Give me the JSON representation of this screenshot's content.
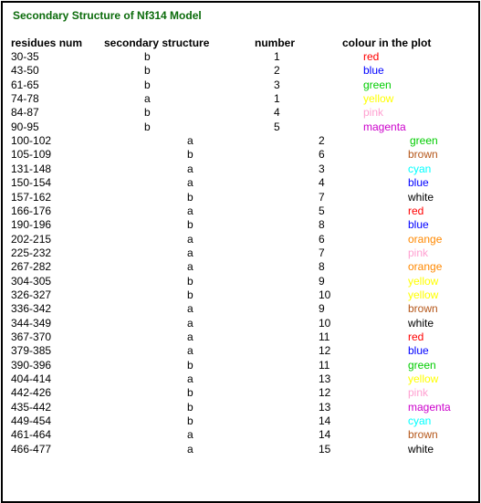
{
  "title": "Secondary Structure of Nf314 Model",
  "headers": {
    "residues": "residues num",
    "structure": "secondary structure",
    "number": "number",
    "colour": "colour in the plot"
  },
  "colors": {
    "title": "#0b6b0b",
    "red": "#ff0000",
    "blue": "#0000ff",
    "green": "#00cc00",
    "yellow": "#ffff00",
    "pink": "#ff9fd0",
    "magenta": "#cc00cc",
    "brown": "#b5571a",
    "cyan": "#00ffff",
    "white": "#000000",
    "orange": "#ff8800"
  },
  "rows": [
    {
      "res": "30-35",
      "ss": "b",
      "num": "1",
      "colour": "red"
    },
    {
      "res": "43-50",
      "ss": "b",
      "num": "2",
      "colour": "blue"
    },
    {
      "res": "61-65",
      "ss": "b",
      "num": "3",
      "colour": "green"
    },
    {
      "res": "74-78",
      "ss": "a",
      "num": "1",
      "colour": "yellow"
    },
    {
      "res": "84-87",
      "ss": "b",
      "num": "4",
      "colour": "pink"
    },
    {
      "res": "90-95",
      "ss": "b",
      "num": "5",
      "colour": "magenta"
    },
    {
      "res": "100-102",
      "ss": "a",
      "num": "2",
      "colour": "green"
    },
    {
      "res": "105-109",
      "ss": "b",
      "num": "6",
      "colour": "brown"
    },
    {
      "res": "131-148",
      "ss": "a",
      "num": "3",
      "colour": "cyan"
    },
    {
      "res": "150-154",
      "ss": "a",
      "num": "4",
      "colour": "blue"
    },
    {
      "res": "157-162",
      "ss": "b",
      "num": "7",
      "colour": "white"
    },
    {
      "res": "166-176",
      "ss": "a",
      "num": "5",
      "colour": "red"
    },
    {
      "res": "190-196",
      "ss": "b",
      "num": "8",
      "colour": "blue"
    },
    {
      "res": "202-215",
      "ss": "a",
      "num": "6",
      "colour": "orange"
    },
    {
      "res": "225-232",
      "ss": "a",
      "num": "7",
      "colour": "pink"
    },
    {
      "res": "267-282",
      "ss": "a",
      "num": "8",
      "colour": "orange"
    },
    {
      "res": "304-305",
      "ss": "b",
      "num": "9",
      "colour": "yellow"
    },
    {
      "res": "326-327",
      "ss": "b",
      "num": "10",
      "colour": "yellow"
    },
    {
      "res": "336-342",
      "ss": "a",
      "num": "9",
      "colour": "brown"
    },
    {
      "res": "344-349",
      "ss": "a",
      "num": "10",
      "colour": "white"
    },
    {
      "res": "367-370",
      "ss": "a",
      "num": "11",
      "colour": "red"
    },
    {
      "res": "379-385",
      "ss": "a",
      "num": "12",
      "colour": "blue"
    },
    {
      "res": "390-396",
      "ss": "b",
      "num": "11",
      "colour": "green"
    },
    {
      "res": "404-414",
      "ss": "a",
      "num": "13",
      "colour": "yellow"
    },
    {
      "res": "442-426",
      "ss": "b",
      "num": "12",
      "colour": "pink"
    },
    {
      "res": "435-442",
      "ss": "b",
      "num": "13",
      "colour": "magenta"
    },
    {
      "res": "449-454",
      "ss": "b",
      "num": "14",
      "colour": "cyan"
    },
    {
      "res": "461-464",
      "ss": "a",
      "num": "14",
      "colour": "brown"
    },
    {
      "res": "466-477",
      "ss": "a",
      "num": "15",
      "colour": "white"
    }
  ]
}
